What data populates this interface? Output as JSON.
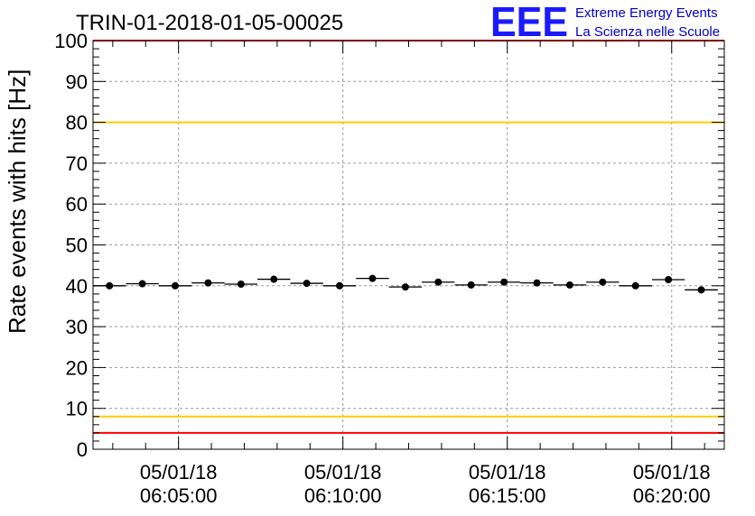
{
  "chart_data": {
    "type": "scatter",
    "title": "TRIN-01-2018-01-05-00025",
    "ylabel": "Rate events with hits [Hz]",
    "xlabel": "",
    "ylim": [
      0,
      100
    ],
    "yticks": [
      0,
      10,
      20,
      30,
      40,
      50,
      60,
      70,
      80,
      90,
      100
    ],
    "xlim": [
      "06:02:24",
      "06:21:36"
    ],
    "xticks": [
      {
        "time": "06:05:00",
        "date_label": "05/01/18",
        "time_label": "06:05:00"
      },
      {
        "time": "06:10:00",
        "date_label": "05/01/18",
        "time_label": "06:10:00"
      },
      {
        "time": "06:15:00",
        "date_label": "05/01/18",
        "time_label": "06:15:00"
      },
      {
        "time": "06:20:00",
        "date_label": "05/01/18",
        "time_label": "06:20:00"
      }
    ],
    "grid": true,
    "bin_width_seconds": 60,
    "series": [
      {
        "x": [
          "06:02:54",
          "06:03:54",
          "06:04:54",
          "06:05:54",
          "06:06:54",
          "06:07:54",
          "06:08:54",
          "06:09:54",
          "06:10:54",
          "06:11:54",
          "06:12:54",
          "06:13:54",
          "06:14:54",
          "06:15:54",
          "06:16:54",
          "06:17:54",
          "06:18:54",
          "06:19:54",
          "06:20:54"
        ],
        "values": [
          40.0,
          40.5,
          40.0,
          40.7,
          40.4,
          41.6,
          40.6,
          40.0,
          41.8,
          39.7,
          40.9,
          40.2,
          40.9,
          40.7,
          40.2,
          40.9,
          40.0,
          41.5,
          39.0
        ]
      }
    ],
    "reference_lines": [
      {
        "y": 100,
        "color": "#ff0000"
      },
      {
        "y": 80,
        "color": "#ffcc00"
      },
      {
        "y": 8,
        "color": "#ffcc00"
      },
      {
        "y": 4,
        "color": "#ff0000"
      }
    ]
  },
  "logo": {
    "mark": "EEE",
    "line1": "Extreme Energy Events",
    "line2": "La Scienza nelle Scuole",
    "color": "#1a1aff"
  }
}
